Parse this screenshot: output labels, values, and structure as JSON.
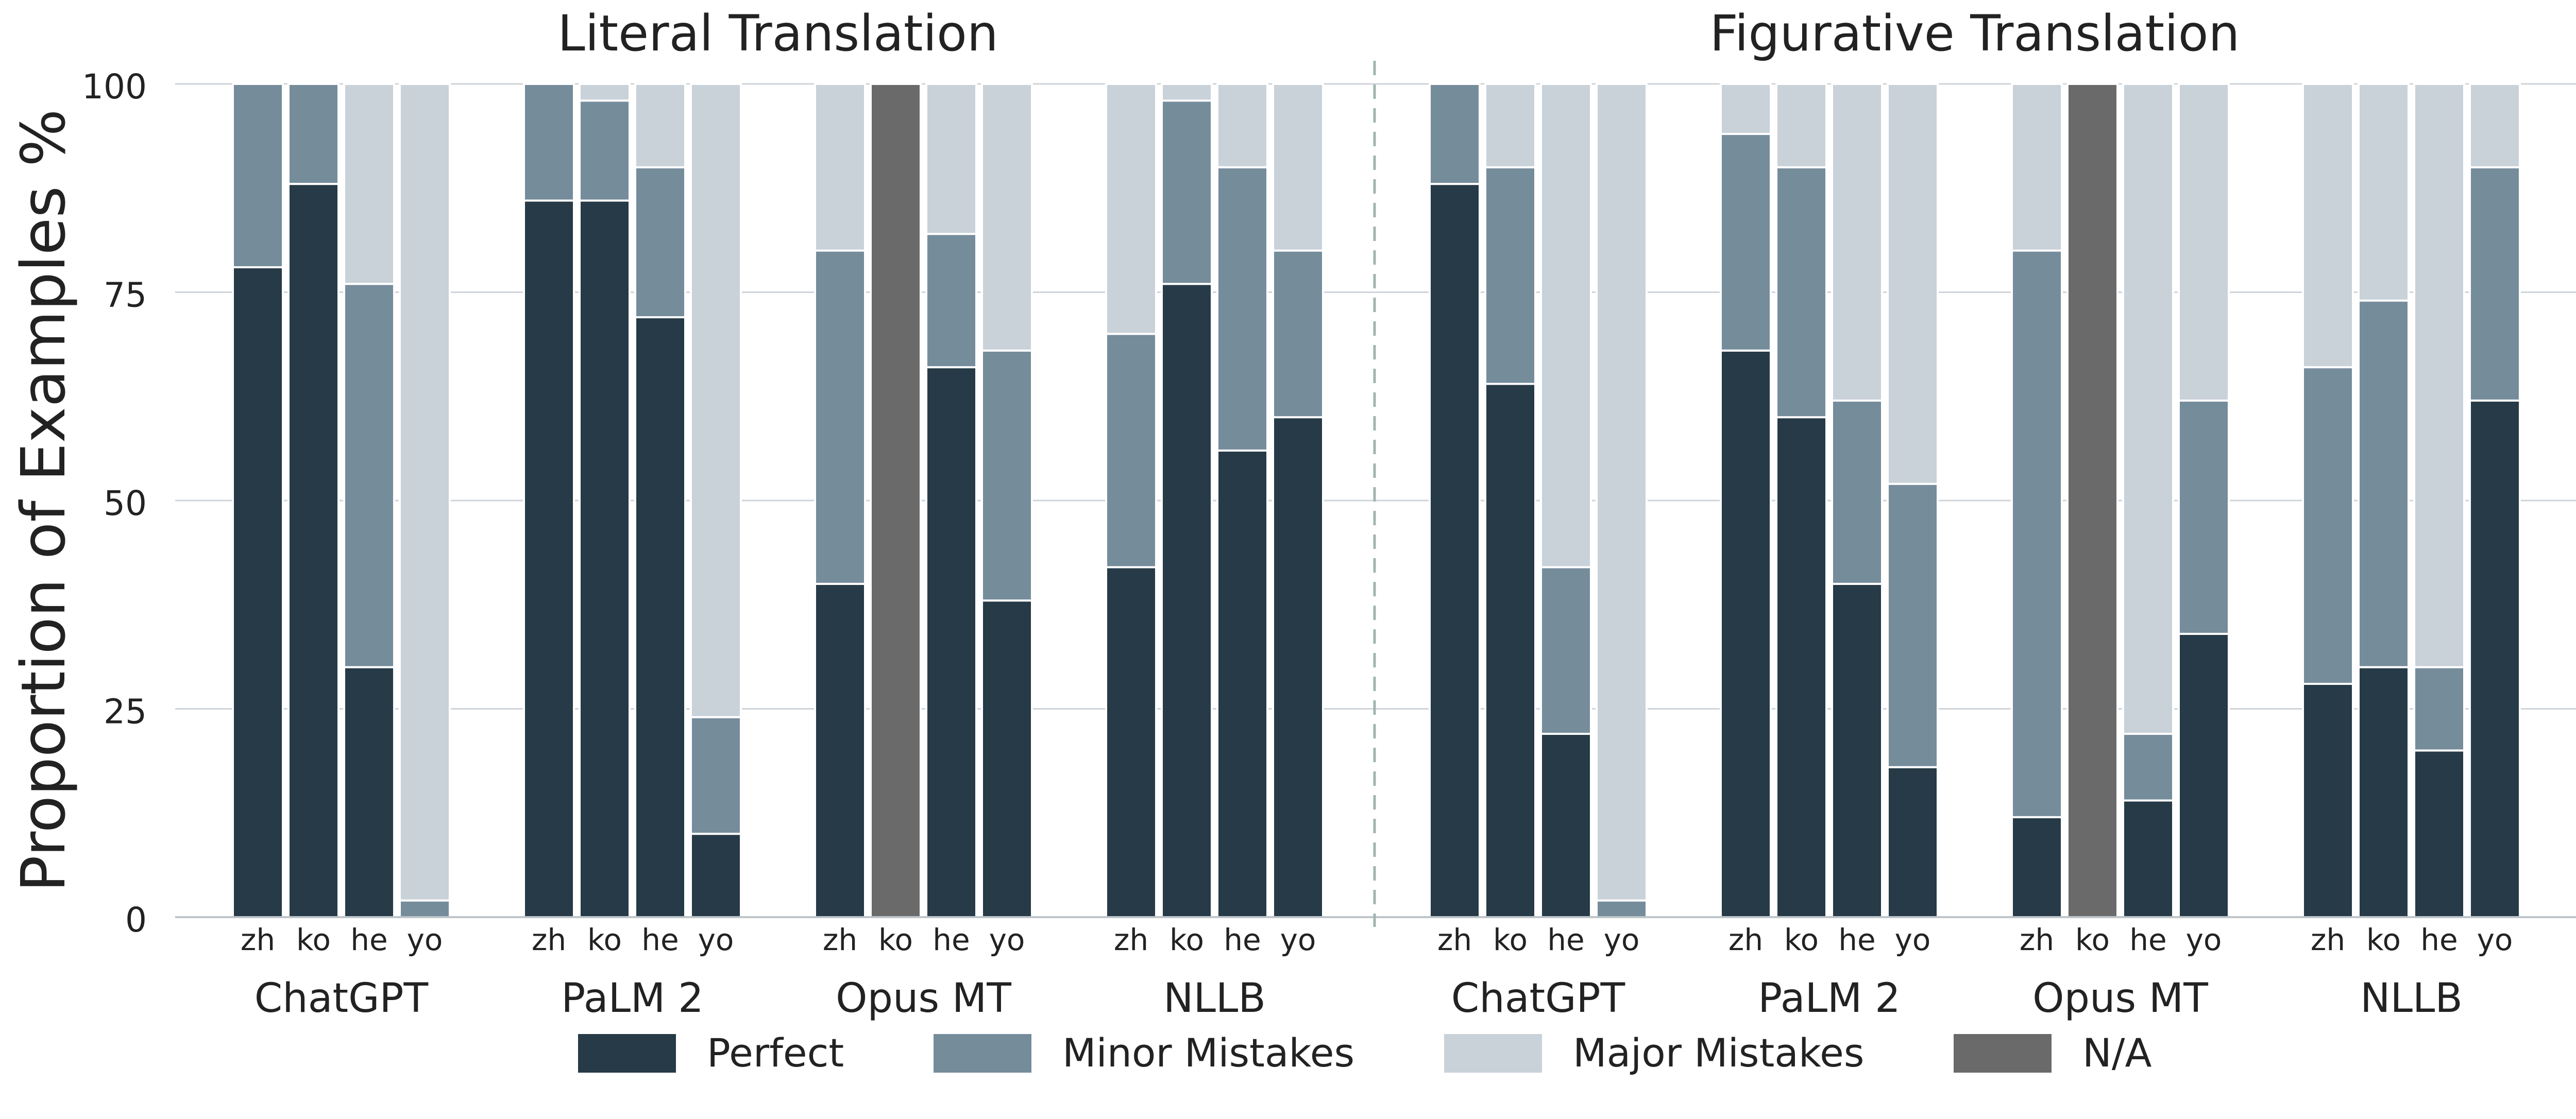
{
  "chart_data": {
    "type": "bar",
    "stacked": true,
    "ylabel": "Proportion of Examples %",
    "ylim": [
      0,
      100
    ],
    "yticks": [
      "0",
      "25",
      "50",
      "75",
      "100"
    ],
    "grid": "horizontal",
    "legend_position": "bottom",
    "colors": {
      "Perfect": "#263a47",
      "Minor Mistakes": "#758c9b",
      "Major Mistakes": "#c9d1d9",
      "N/A": "#6a6a6a"
    },
    "legend": [
      "Perfect",
      "Minor Mistakes",
      "Major Mistakes",
      "N/A"
    ],
    "languages": [
      "zh",
      "ko",
      "he",
      "yo"
    ],
    "panels": [
      {
        "title": "Literal Translation",
        "groups": [
          {
            "model": "ChatGPT",
            "bars": [
              {
                "lang": "zh",
                "perfect": 78,
                "minor": 22,
                "major": 0,
                "na": 0
              },
              {
                "lang": "ko",
                "perfect": 88,
                "minor": 12,
                "major": 0,
                "na": 0
              },
              {
                "lang": "he",
                "perfect": 30,
                "minor": 46,
                "major": 24,
                "na": 0
              },
              {
                "lang": "yo",
                "perfect": 0,
                "minor": 2,
                "major": 98,
                "na": 0
              }
            ]
          },
          {
            "model": "PaLM 2",
            "bars": [
              {
                "lang": "zh",
                "perfect": 86,
                "minor": 14,
                "major": 0,
                "na": 0
              },
              {
                "lang": "ko",
                "perfect": 86,
                "minor": 12,
                "major": 2,
                "na": 0
              },
              {
                "lang": "he",
                "perfect": 72,
                "minor": 18,
                "major": 10,
                "na": 0
              },
              {
                "lang": "yo",
                "perfect": 10,
                "minor": 14,
                "major": 76,
                "na": 0
              }
            ]
          },
          {
            "model": "Opus MT",
            "bars": [
              {
                "lang": "zh",
                "perfect": 40,
                "minor": 40,
                "major": 20,
                "na": 0
              },
              {
                "lang": "ko",
                "perfect": 0,
                "minor": 0,
                "major": 0,
                "na": 100
              },
              {
                "lang": "he",
                "perfect": 66,
                "minor": 16,
                "major": 18,
                "na": 0
              },
              {
                "lang": "yo",
                "perfect": 38,
                "minor": 30,
                "major": 32,
                "na": 0
              }
            ]
          },
          {
            "model": "NLLB",
            "bars": [
              {
                "lang": "zh",
                "perfect": 42,
                "minor": 28,
                "major": 30,
                "na": 0
              },
              {
                "lang": "ko",
                "perfect": 76,
                "minor": 22,
                "major": 2,
                "na": 0
              },
              {
                "lang": "he",
                "perfect": 56,
                "minor": 34,
                "major": 10,
                "na": 0
              },
              {
                "lang": "yo",
                "perfect": 60,
                "minor": 20,
                "major": 20,
                "na": 0
              }
            ]
          }
        ]
      },
      {
        "title": "Figurative Translation",
        "groups": [
          {
            "model": "ChatGPT",
            "bars": [
              {
                "lang": "zh",
                "perfect": 88,
                "minor": 12,
                "major": 0,
                "na": 0
              },
              {
                "lang": "ko",
                "perfect": 64,
                "minor": 26,
                "major": 10,
                "na": 0
              },
              {
                "lang": "he",
                "perfect": 22,
                "minor": 20,
                "major": 58,
                "na": 0
              },
              {
                "lang": "yo",
                "perfect": 0,
                "minor": 2,
                "major": 98,
                "na": 0
              }
            ]
          },
          {
            "model": "PaLM 2",
            "bars": [
              {
                "lang": "zh",
                "perfect": 68,
                "minor": 26,
                "major": 6,
                "na": 0
              },
              {
                "lang": "ko",
                "perfect": 60,
                "minor": 30,
                "major": 10,
                "na": 0
              },
              {
                "lang": "he",
                "perfect": 40,
                "minor": 22,
                "major": 38,
                "na": 0
              },
              {
                "lang": "yo",
                "perfect": 18,
                "minor": 34,
                "major": 48,
                "na": 0
              }
            ]
          },
          {
            "model": "Opus MT",
            "bars": [
              {
                "lang": "zh",
                "perfect": 12,
                "minor": 68,
                "major": 20,
                "na": 0
              },
              {
                "lang": "ko",
                "perfect": 0,
                "minor": 0,
                "major": 0,
                "na": 100
              },
              {
                "lang": "he",
                "perfect": 14,
                "minor": 8,
                "major": 78,
                "na": 0
              },
              {
                "lang": "yo",
                "perfect": 34,
                "minor": 28,
                "major": 38,
                "na": 0
              }
            ]
          },
          {
            "model": "NLLB",
            "bars": [
              {
                "lang": "zh",
                "perfect": 28,
                "minor": 38,
                "major": 34,
                "na": 0
              },
              {
                "lang": "ko",
                "perfect": 30,
                "minor": 44,
                "major": 26,
                "na": 0
              },
              {
                "lang": "he",
                "perfect": 20,
                "minor": 10,
                "major": 70,
                "na": 0
              },
              {
                "lang": "yo",
                "perfect": 62,
                "minor": 28,
                "major": 10,
                "na": 0
              }
            ]
          }
        ]
      }
    ]
  }
}
